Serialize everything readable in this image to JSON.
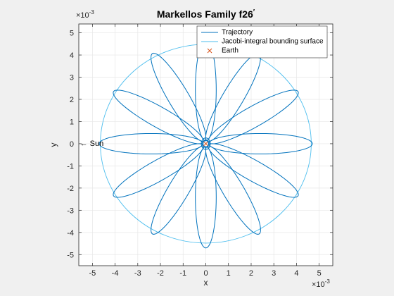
{
  "chart_data": {
    "type": "line",
    "title": "Markellos Family f26",
    "title_prime": "′",
    "xlabel": "x",
    "ylabel": "y",
    "xlim": [
      -5.6,
      5.6
    ],
    "ylim": [
      -5.5,
      5.4
    ],
    "x_multiplier": "×10",
    "y_multiplier": "×10",
    "multiplier_exponent": "-3",
    "grid": true,
    "legend_position": "top-right",
    "xticks": [
      "-5",
      "-4",
      "-3",
      "-2",
      "-1",
      "0",
      "1",
      "2",
      "3",
      "4",
      "5"
    ],
    "yticks": [
      "5",
      "4",
      "3",
      "2",
      "1",
      "0",
      "-1",
      "-2",
      "-3",
      "-4",
      "-5"
    ],
    "series": [
      {
        "name": "Trajectory",
        "color": "#0072BD",
        "petals": 12,
        "r_max": 4.7,
        "r_min": 0.13,
        "petal_half_width": 0.46,
        "first_petal_angle_deg": 0
      },
      {
        "name": "Jacobi-integral bounding surface",
        "color": "#4DBEEE",
        "center": [
          0,
          0
        ],
        "rx": 4.65,
        "ry": 4.48
      },
      {
        "name": "Earth",
        "color": "#D95319",
        "marker": "x",
        "x": 0,
        "y": 0
      }
    ],
    "annotation": {
      "text": "← Sun",
      "x": -5.55,
      "y": 0
    }
  }
}
